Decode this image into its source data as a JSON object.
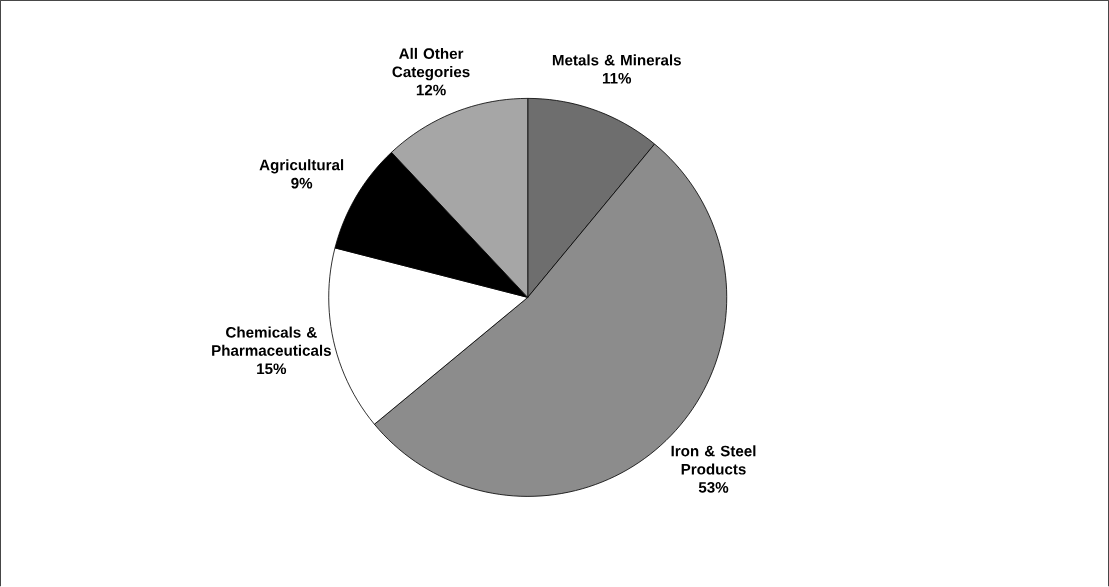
{
  "chart_data": {
    "type": "pie",
    "categories": [
      "Metals & Minerals",
      "Iron & Steel Products",
      "Chemicals & Pharmaceuticals",
      "Agricultural",
      "All Other Categories"
    ],
    "values": [
      11,
      53,
      15,
      9,
      12
    ],
    "value_labels": [
      "11%",
      "53%",
      "15%",
      "9%",
      "12%"
    ],
    "colors": [
      "#6e6e6e",
      "#8c8c8c",
      "#ffffff",
      "#000000",
      "#a6a6a6"
    ]
  }
}
